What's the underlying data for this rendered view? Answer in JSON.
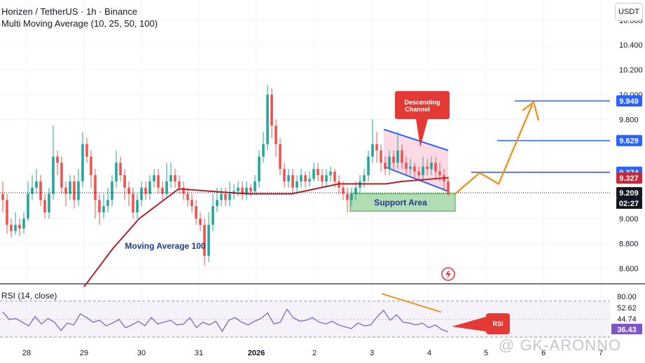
{
  "header": {
    "symbol_line": "Horizen / TetherUS · 1h · Binance",
    "indicator_line": "Multi Moving Average (10, 25, 50, 100)",
    "currency_badge": "USDT"
  },
  "price_axis": {
    "ticks": [
      "10.600",
      "10.400",
      "10.200",
      "10.000",
      "9.800",
      "9.000",
      "8.800",
      "8.600"
    ],
    "tick_values": [
      10.6,
      10.4,
      10.2,
      10.0,
      9.8,
      9.0,
      8.8,
      8.6
    ],
    "labels": [
      {
        "text": "9.949",
        "value": 9.949,
        "color": "#2962ff"
      },
      {
        "text": "9.629",
        "value": 9.629,
        "color": "#2962ff"
      },
      {
        "text": "9.374",
        "value": 9.374,
        "color": "#2962ff"
      },
      {
        "text": "9.327",
        "value": 9.327,
        "color": "#c62839"
      },
      {
        "text": "9.209",
        "value": 9.209,
        "color": "#131722"
      }
    ],
    "countdown": "02:27"
  },
  "rsi_axis": {
    "ticks": [
      "80.00",
      "52.62",
      "44.74",
      "36.43"
    ],
    "tick_values": [
      80.0,
      52.62,
      44.74,
      36.43
    ]
  },
  "time_axis": {
    "labels": [
      "28",
      "29",
      "30",
      "31",
      "2026",
      "2",
      "3",
      "4",
      "5",
      "6",
      "7"
    ]
  },
  "annotations": {
    "descending_channel": "Descending Channel",
    "support_area": "Support Area",
    "moving_average": "Moving Average 100",
    "rsi_callout": "RSI",
    "rsi_panel_label": "RSI (14, close)"
  },
  "watermark": "@ GK-ARONNO",
  "colors": {
    "up": "#26a69a",
    "down": "#ef5350",
    "ma100": "#b2222c",
    "rsi": "#7e57c2",
    "projection": "#f0941e",
    "level": "#2962ff",
    "callout": "#e53935"
  },
  "chart_data": {
    "type": "candlestick",
    "title": "Horizen / TetherUS · 1h · Binance",
    "x": [
      "28",
      "29",
      "30",
      "31",
      "2026",
      "2",
      "3",
      "4",
      "5",
      "6",
      "7"
    ],
    "ylim": [
      8.48,
      10.74
    ],
    "horizontal_levels": [
      9.949,
      9.629,
      9.374
    ],
    "last_price": 9.209,
    "ma100_last": 9.327,
    "series": [
      {
        "name": "Moving Average 100",
        "kind": "line",
        "points": [
          [
            8.45,
            8.45
          ],
          [
            9.0,
            8.76
          ],
          [
            9.5,
            9.0
          ],
          [
            10.25,
            9.24
          ],
          [
            11.55,
            9.2
          ],
          [
            12.4,
            9.2
          ],
          [
            13.3,
            9.28
          ],
          [
            14.2,
            9.28
          ],
          [
            14.5,
            9.3
          ],
          [
            15.4,
            9.33
          ]
        ]
      },
      {
        "name": "RSI (14, close)",
        "kind": "line",
        "ylim": [
          30,
          88
        ],
        "points": [
          [
            0,
            58
          ],
          [
            1,
            50
          ],
          [
            2,
            51
          ],
          [
            3,
            47
          ],
          [
            4,
            43
          ],
          [
            5,
            53
          ],
          [
            6,
            45
          ],
          [
            7,
            51
          ],
          [
            8,
            47
          ],
          [
            9,
            38
          ],
          [
            10,
            46
          ],
          [
            11,
            44
          ],
          [
            12,
            56
          ],
          [
            13,
            52
          ],
          [
            14,
            47
          ],
          [
            15,
            49
          ],
          [
            16,
            43
          ],
          [
            17,
            46
          ],
          [
            18,
            50
          ],
          [
            19,
            41
          ],
          [
            20,
            44
          ],
          [
            21,
            48
          ],
          [
            22,
            43
          ],
          [
            23,
            52
          ],
          [
            24,
            45
          ],
          [
            25,
            47
          ],
          [
            26,
            49
          ],
          [
            27,
            44
          ],
          [
            28,
            45
          ],
          [
            29,
            52
          ],
          [
            30,
            41
          ],
          [
            31,
            47
          ],
          [
            32,
            44
          ],
          [
            33,
            48
          ],
          [
            34,
            37
          ],
          [
            35,
            49
          ],
          [
            36,
            52
          ],
          [
            37,
            47
          ],
          [
            38,
            44
          ],
          [
            39,
            48
          ],
          [
            40,
            51
          ],
          [
            41,
            57
          ],
          [
            42,
            45
          ],
          [
            43,
            47
          ],
          [
            44,
            61
          ],
          [
            45,
            52
          ],
          [
            46,
            48
          ],
          [
            47,
            49
          ],
          [
            48,
            52
          ],
          [
            49,
            47
          ],
          [
            50,
            45
          ],
          [
            51,
            48
          ],
          [
            52,
            44
          ],
          [
            53,
            42
          ],
          [
            54,
            40
          ],
          [
            55,
            46
          ],
          [
            56,
            43
          ],
          [
            57,
            44
          ],
          [
            58,
            53
          ],
          [
            59,
            60
          ],
          [
            60,
            49
          ],
          [
            61,
            55
          ],
          [
            62,
            47
          ],
          [
            63,
            46
          ],
          [
            64,
            44
          ],
          [
            65,
            46
          ],
          [
            66,
            41
          ],
          [
            67,
            44
          ],
          [
            68,
            39
          ],
          [
            69,
            36.43
          ]
        ]
      }
    ],
    "candles": [
      [
        9.2,
        9.15,
        9.3,
        9.05
      ],
      [
        9.15,
        8.95,
        9.2,
        8.88
      ],
      [
        8.95,
        8.9,
        9.0,
        8.85
      ],
      [
        8.9,
        8.95,
        9.05,
        8.87
      ],
      [
        8.95,
        8.92,
        9.0,
        8.86
      ],
      [
        8.92,
        9.0,
        9.05,
        8.88
      ],
      [
        9.0,
        9.2,
        9.3,
        8.98
      ],
      [
        9.2,
        9.25,
        9.35,
        9.15
      ],
      [
        9.25,
        9.3,
        9.4,
        9.2
      ],
      [
        9.3,
        9.15,
        9.35,
        9.1
      ],
      [
        9.15,
        9.05,
        9.2,
        9.0
      ],
      [
        9.05,
        9.2,
        9.25,
        9.0
      ],
      [
        9.2,
        9.5,
        9.75,
        9.15
      ],
      [
        9.5,
        9.45,
        9.55,
        9.35
      ],
      [
        9.45,
        9.25,
        9.5,
        9.2
      ],
      [
        9.25,
        9.2,
        9.3,
        9.1
      ],
      [
        9.2,
        9.3,
        9.35,
        9.15
      ],
      [
        9.3,
        9.15,
        9.35,
        9.08
      ],
      [
        9.15,
        9.3,
        9.4,
        9.1
      ],
      [
        9.3,
        9.6,
        9.7,
        9.25
      ],
      [
        9.6,
        9.5,
        9.65,
        9.45
      ],
      [
        9.5,
        9.35,
        9.55,
        9.25
      ],
      [
        9.35,
        9.15,
        9.4,
        9.0
      ],
      [
        9.15,
        9.05,
        9.2,
        8.95
      ],
      [
        9.05,
        9.1,
        9.2,
        9.0
      ],
      [
        9.1,
        9.15,
        9.25,
        9.05
      ],
      [
        9.15,
        9.3,
        9.35,
        9.1
      ],
      [
        9.3,
        9.45,
        9.55,
        9.25
      ],
      [
        9.45,
        9.35,
        9.5,
        9.3
      ],
      [
        9.35,
        9.25,
        9.4,
        9.15
      ],
      [
        9.25,
        9.2,
        9.3,
        9.1
      ],
      [
        9.2,
        9.05,
        9.25,
        9.0
      ],
      [
        9.05,
        9.15,
        9.2,
        9.0
      ],
      [
        9.15,
        9.25,
        9.3,
        9.1
      ],
      [
        9.25,
        9.2,
        9.3,
        9.15
      ],
      [
        9.2,
        9.3,
        9.35,
        9.15
      ],
      [
        9.3,
        9.35,
        9.4,
        9.25
      ],
      [
        9.35,
        9.25,
        9.4,
        9.2
      ],
      [
        9.25,
        9.2,
        9.3,
        9.15
      ],
      [
        9.2,
        9.3,
        9.45,
        9.18
      ],
      [
        9.3,
        9.35,
        9.45,
        9.25
      ],
      [
        9.35,
        9.3,
        9.4,
        9.25
      ],
      [
        9.3,
        9.25,
        9.35,
        9.2
      ],
      [
        9.25,
        9.2,
        9.3,
        9.15
      ],
      [
        9.2,
        9.15,
        9.25,
        9.1
      ],
      [
        9.15,
        9.1,
        9.2,
        9.05
      ],
      [
        9.1,
        9.0,
        9.15,
        8.95
      ],
      [
        9.0,
        8.95,
        9.05,
        8.9
      ],
      [
        8.95,
        8.7,
        9.0,
        8.62
      ],
      [
        8.7,
        8.95,
        9.05,
        8.65
      ],
      [
        8.95,
        9.1,
        9.2,
        8.9
      ],
      [
        9.1,
        9.15,
        9.25,
        9.05
      ],
      [
        9.15,
        9.2,
        9.25,
        9.1
      ],
      [
        9.2,
        9.15,
        9.25,
        9.1
      ],
      [
        9.15,
        9.2,
        9.3,
        9.1
      ],
      [
        9.2,
        9.22,
        9.28,
        9.15
      ],
      [
        9.22,
        9.25,
        9.3,
        9.18
      ],
      [
        9.25,
        9.2,
        9.3,
        9.15
      ],
      [
        9.2,
        9.25,
        9.3,
        9.15
      ],
      [
        9.25,
        9.22,
        9.28,
        9.18
      ],
      [
        9.22,
        9.3,
        9.35,
        9.2
      ],
      [
        9.3,
        9.5,
        9.55,
        9.25
      ],
      [
        9.5,
        9.6,
        9.7,
        9.45
      ],
      [
        9.6,
        10.0,
        10.08,
        9.55
      ],
      [
        10.0,
        9.75,
        10.05,
        9.65
      ],
      [
        9.75,
        9.6,
        9.8,
        9.5
      ],
      [
        9.6,
        9.4,
        9.65,
        9.35
      ],
      [
        9.4,
        9.3,
        9.45,
        9.25
      ],
      [
        9.3,
        9.35,
        9.4,
        9.25
      ],
      [
        9.35,
        9.25,
        9.4,
        9.2
      ],
      [
        9.25,
        9.3,
        9.35,
        9.2
      ],
      [
        9.3,
        9.35,
        9.4,
        9.25
      ],
      [
        9.35,
        9.3,
        9.38,
        9.25
      ],
      [
        9.3,
        9.32,
        9.38,
        9.26
      ],
      [
        9.32,
        9.4,
        9.45,
        9.3
      ],
      [
        9.4,
        9.35,
        9.45,
        9.3
      ],
      [
        9.35,
        9.3,
        9.4,
        9.25
      ],
      [
        9.3,
        9.35,
        9.4,
        9.25
      ],
      [
        9.35,
        9.38,
        9.42,
        9.3
      ],
      [
        9.38,
        9.3,
        9.4,
        9.25
      ],
      [
        9.3,
        9.25,
        9.35,
        9.2
      ],
      [
        9.25,
        9.2,
        9.3,
        9.15
      ],
      [
        9.2,
        9.15,
        9.25,
        9.05
      ],
      [
        9.15,
        9.2,
        9.25,
        9.1
      ],
      [
        9.2,
        9.25,
        9.3,
        9.15
      ],
      [
        9.25,
        9.3,
        9.35,
        9.2
      ],
      [
        9.3,
        9.35,
        9.4,
        9.25
      ],
      [
        9.35,
        9.5,
        9.55,
        9.3
      ],
      [
        9.5,
        9.6,
        9.8,
        9.45
      ],
      [
        9.6,
        9.55,
        9.7,
        9.45
      ],
      [
        9.55,
        9.45,
        9.6,
        9.38
      ],
      [
        9.45,
        9.4,
        9.5,
        9.35
      ],
      [
        9.4,
        9.5,
        9.55,
        9.35
      ],
      [
        9.5,
        9.45,
        9.55,
        9.38
      ],
      [
        9.45,
        9.55,
        9.7,
        9.4
      ],
      [
        9.55,
        9.45,
        9.6,
        9.4
      ],
      [
        9.45,
        9.4,
        9.5,
        9.35
      ],
      [
        9.4,
        9.42,
        9.48,
        9.35
      ],
      [
        9.42,
        9.38,
        9.45,
        9.32
      ],
      [
        9.38,
        9.35,
        9.42,
        9.3
      ],
      [
        9.35,
        9.42,
        9.5,
        9.3
      ],
      [
        9.42,
        9.4,
        9.48,
        9.35
      ],
      [
        9.4,
        9.45,
        9.5,
        9.35
      ],
      [
        9.45,
        9.38,
        9.5,
        9.32
      ],
      [
        9.38,
        9.35,
        9.45,
        9.3
      ],
      [
        9.35,
        9.3,
        9.4,
        9.22
      ],
      [
        9.3,
        9.2,
        9.34,
        9.18
      ]
    ]
  }
}
